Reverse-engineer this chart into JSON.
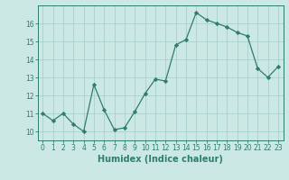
{
  "x": [
    0,
    1,
    2,
    3,
    4,
    5,
    6,
    7,
    8,
    9,
    10,
    11,
    12,
    13,
    14,
    15,
    16,
    17,
    18,
    19,
    20,
    21,
    22,
    23
  ],
  "y": [
    11.0,
    10.6,
    11.0,
    10.4,
    10.0,
    12.6,
    11.2,
    10.1,
    10.2,
    11.1,
    12.1,
    12.9,
    12.8,
    14.8,
    15.1,
    16.6,
    16.2,
    16.0,
    15.8,
    15.5,
    15.3,
    13.5,
    13.0,
    13.6
  ],
  "xlabel": "Humidex (Indice chaleur)",
  "xlim": [
    -0.5,
    23.5
  ],
  "ylim": [
    9.5,
    17.0
  ],
  "yticks": [
    10,
    11,
    12,
    13,
    14,
    15,
    16
  ],
  "xticks": [
    0,
    1,
    2,
    3,
    4,
    5,
    6,
    7,
    8,
    9,
    10,
    11,
    12,
    13,
    14,
    15,
    16,
    17,
    18,
    19,
    20,
    21,
    22,
    23
  ],
  "line_color": "#2e7d6e",
  "marker": "D",
  "marker_size": 2.2,
  "bg_color": "#cce8e4",
  "grid_color": "#aacfcb",
  "axes_color": "#2e7d6e",
  "tick_label_fontsize": 5.5,
  "xlabel_fontsize": 7.0,
  "xlabel_fontweight": "bold"
}
